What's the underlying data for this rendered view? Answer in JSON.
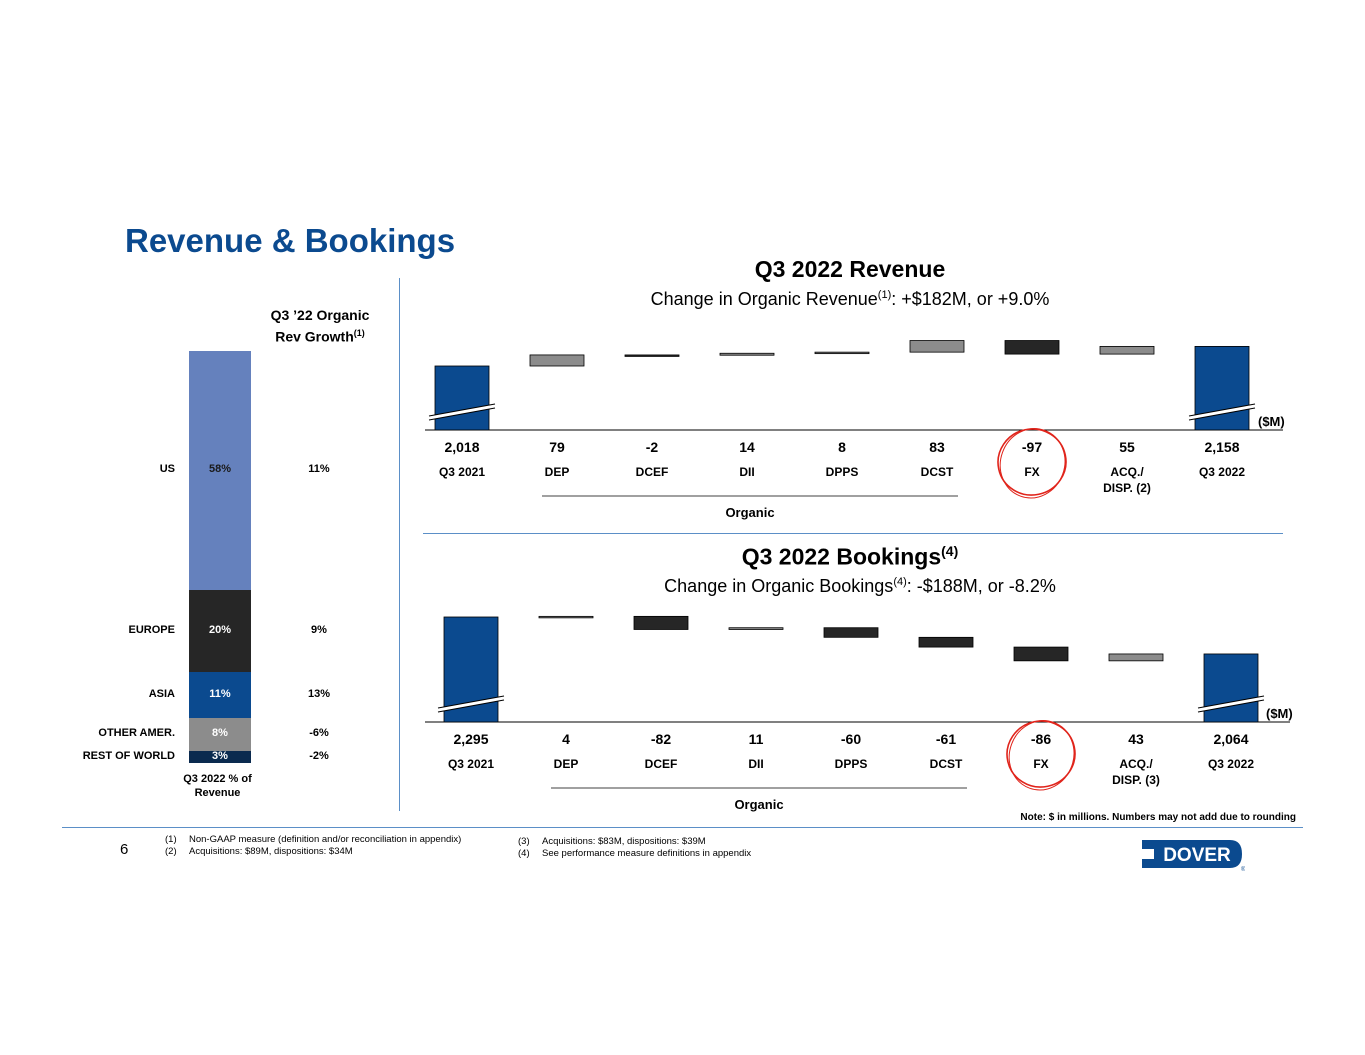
{
  "title": "Revenue & Bookings",
  "page_number": "6",
  "geo": {
    "growth_header_line1": "Q3 ’22 Organic",
    "growth_header_line2": "Rev Growth",
    "growth_header_sup": "(1)",
    "footer_line1": "Q3 2022 % of",
    "footer_line2": "Revenue",
    "segments": [
      {
        "label": "US",
        "pct": "58%",
        "growth": "11%",
        "value": 58,
        "color": "#6581bd"
      },
      {
        "label": "EUROPE",
        "pct": "20%",
        "growth": "9%",
        "value": 20,
        "color": "#262626"
      },
      {
        "label": "ASIA",
        "pct": "11%",
        "growth": "13%",
        "value": 11,
        "color": "#0b4a8f"
      },
      {
        "label": "OTHER AMER.",
        "pct": "8%",
        "growth": "-6%",
        "value": 8,
        "color": "#8c8c8c"
      },
      {
        "label": "REST OF WORLD",
        "pct": "3%",
        "growth": "-2%",
        "value": 3,
        "color": "#0a2a4f"
      }
    ]
  },
  "revenue": {
    "title": "Q3 2022 Revenue",
    "subtitle_pre": "Change in Organic Revenue",
    "subtitle_sup": "(1)",
    "subtitle_post": ": +$182M, or +9.0%",
    "unit_label": "($M)",
    "organic_label": "Organic"
  },
  "bookings": {
    "title": "Q3 2022 Bookings",
    "title_sup": "(4)",
    "subtitle_pre": "Change in Organic Bookings",
    "subtitle_sup": "(4)",
    "subtitle_post": ": -$188M, or -8.2%",
    "unit_label": "($M)",
    "organic_label": "Organic"
  },
  "chart_data": [
    {
      "type": "bar",
      "subtype": "waterfall",
      "title": "Q3 2022 Revenue",
      "unit": "$M",
      "categories": [
        "Q3 2021",
        "DEP",
        "DCEF",
        "DII",
        "DPPS",
        "DCST",
        "FX",
        "ACQ./\nDISP. (2)",
        "Q3 2022"
      ],
      "values": [
        2018,
        79,
        -2,
        14,
        8,
        83,
        -97,
        55,
        2158
      ],
      "value_labels": [
        "2,018",
        "79",
        "-2",
        "14",
        "8",
        "83",
        "-97",
        "55",
        "2,158"
      ],
      "kinds": [
        "total",
        "delta",
        "delta",
        "delta",
        "delta",
        "delta",
        "delta",
        "delta",
        "total"
      ],
      "colors": {
        "total": "#0b4a8f",
        "positive": "#8c8c8c",
        "negative": "#262626",
        "acq": "#8c8c8c"
      },
      "organic_group": [
        "DEP",
        "DCEF",
        "DII",
        "DPPS",
        "DCST"
      ],
      "highlight": "FX",
      "axis_break": true
    },
    {
      "type": "bar",
      "subtype": "waterfall",
      "title": "Q3 2022 Bookings",
      "unit": "$M",
      "categories": [
        "Q3 2021",
        "DEP",
        "DCEF",
        "DII",
        "DPPS",
        "DCST",
        "FX",
        "ACQ./\nDISP. (3)",
        "Q3 2022"
      ],
      "values": [
        2295,
        4,
        -82,
        11,
        -60,
        -61,
        -86,
        43,
        2064
      ],
      "value_labels": [
        "2,295",
        "4",
        "-82",
        "11",
        "-60",
        "-61",
        "-86",
        "43",
        "2,064"
      ],
      "kinds": [
        "total",
        "delta",
        "delta",
        "delta",
        "delta",
        "delta",
        "delta",
        "delta",
        "total"
      ],
      "colors": {
        "total": "#0b4a8f",
        "positive": "#8c8c8c",
        "negative": "#262626",
        "acq": "#8c8c8c"
      },
      "organic_group": [
        "DEP",
        "DCEF",
        "DII",
        "DPPS",
        "DCST"
      ],
      "highlight": "FX",
      "axis_break": true
    }
  ],
  "note": "Note: $ in millions. Numbers may not add due to rounding",
  "footnotes_left": [
    {
      "num": "(1)",
      "text": "Non-GAAP measure (definition and/or reconciliation in appendix)"
    },
    {
      "num": "(2)",
      "text": "Acquisitions: $89M, dispositions: $34M"
    }
  ],
  "footnotes_right": [
    {
      "num": "(3)",
      "text": "Acquisitions: $83M, dispositions: $39M"
    },
    {
      "num": "(4)",
      "text": "See performance measure definitions in appendix"
    }
  ],
  "logo_text": "DOVER",
  "logo_color": "#0b4a8f"
}
